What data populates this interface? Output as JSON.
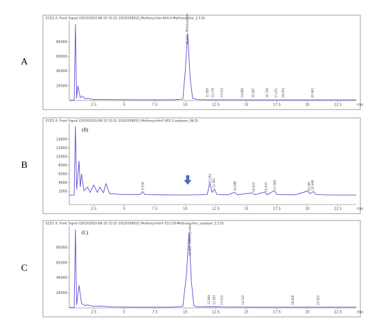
{
  "chart_data": [
    {
      "type": "line",
      "panel_label": "A",
      "title": "ECD1 A, Front Signal (2010\\2010-08-10 15-51-10\\20100810_Methoxychlor-004-4-Methoxychlor_2.5.D)",
      "x_unit": "min",
      "x": [
        0.5,
        0.9,
        1.0,
        1.1,
        1.2,
        1.4,
        1.6,
        1.8,
        2.0,
        2.5,
        3,
        4,
        5,
        6,
        7,
        8,
        9,
        9.8,
        10.0,
        10.2,
        10.4,
        10.6,
        11,
        12,
        14,
        16,
        18,
        20,
        22,
        24
      ],
      "series": [
        {
          "color": "#5a4fcf",
          "values": [
            500,
            500,
            104000,
            3000,
            20000,
            4000,
            6000,
            2000,
            3000,
            1500,
            1500,
            1200,
            1100,
            1000,
            1000,
            1000,
            1000,
            2000,
            40000,
            92000,
            30000,
            3000,
            1200,
            1000,
            1000,
            900,
            900,
            900,
            900,
            900
          ]
        }
      ],
      "xlim": [
        0.5,
        24
      ],
      "xticks": [
        2.5,
        5,
        7.5,
        10,
        12.5,
        15,
        17.5,
        20,
        22.5
      ],
      "ylim": [
        0,
        105000
      ],
      "yticks": [
        20000,
        40000,
        60000,
        80000
      ],
      "peak_labels": [
        {
          "value": 10.171,
          "label": "10.171 - Methoxychlor"
        },
        {
          "value": 11.826,
          "label": "11.826"
        },
        {
          "value": 12.275,
          "label": "12.275"
        },
        {
          "value": 13.023,
          "label": "13.023"
        },
        {
          "value": 14.686,
          "label": "14.686"
        },
        {
          "value": 15.587,
          "label": "15.587"
        },
        {
          "value": 16.726,
          "label": "16.726"
        },
        {
          "value": 17.471,
          "label": "17.471"
        },
        {
          "value": 18.054,
          "label": "18.054"
        },
        {
          "value": 20.463,
          "label": "20.463"
        }
      ]
    },
    {
      "type": "line",
      "panel_label": "B",
      "annotation": "(B)",
      "title": "ECD1 A, Front Signal (2010\\2010-08-10 15-51-10\\20100810_MethoxychlorF-002-2-soybean_06.D)",
      "x_unit": "min",
      "x": [
        0.5,
        0.9,
        1.0,
        1.1,
        1.3,
        1.4,
        1.5,
        1.7,
        2.0,
        2.2,
        2.5,
        2.8,
        3.0,
        3.3,
        3.5,
        3.8,
        5,
        6.3,
        6.5,
        6.7,
        8,
        10,
        11.8,
        12.0,
        12.2,
        12.4,
        12.6,
        13.5,
        14.0,
        14.3,
        15.5,
        15.7,
        16.5,
        16.7,
        17.3,
        17.5,
        19,
        20.0,
        20.2,
        20.5,
        20.7,
        22,
        24
      ],
      "series": [
        {
          "color": "#5a4fcf",
          "values": [
            1200,
            1200,
            17000,
            2500,
            9000,
            3000,
            6000,
            2200,
            3000,
            1800,
            3500,
            1800,
            3000,
            1700,
            3800,
            1500,
            1300,
            1300,
            2000,
            1300,
            1250,
            1200,
            1300,
            4000,
            1800,
            2500,
            1300,
            1250,
            1800,
            1250,
            1700,
            1250,
            1900,
            1250,
            2200,
            1300,
            1250,
            2100,
            1500,
            2000,
            1300,
            1200,
            1200
          ]
        }
      ],
      "xlim": [
        0.5,
        24
      ],
      "xticks": [
        2.5,
        5,
        7.5,
        10,
        12.5,
        15,
        17.5,
        20,
        22.5
      ],
      "ylim": [
        -1000,
        17000
      ],
      "yticks": [
        2000,
        4000,
        6000,
        8000,
        10000,
        12000,
        14000
      ],
      "peak_labels": [
        {
          "value": 6.536,
          "label": "6.536"
        },
        {
          "value": 12.051,
          "label": "12.051"
        },
        {
          "value": 12.362,
          "label": "12.362"
        },
        {
          "value": 14.088,
          "label": "14.088"
        },
        {
          "value": 15.625,
          "label": "15.625"
        },
        {
          "value": 16.637,
          "label": "16.637"
        },
        {
          "value": 17.369,
          "label": "17.369"
        },
        {
          "value": 20.18,
          "label": "20.180"
        },
        {
          "value": 20.448,
          "label": "20.448"
        }
      ]
    },
    {
      "type": "line",
      "panel_label": "C",
      "annotation": "(C)",
      "title": "ECD1 A, Front Signal (2010\\2010-08-10 15-51-10\\20100810_MethoxychlorF-011-29-Methoxychlor_soybean_2.5.D)",
      "x_unit": "min",
      "x": [
        0.5,
        0.9,
        1.0,
        1.1,
        1.3,
        1.5,
        1.8,
        2.0,
        2.5,
        3,
        4,
        5,
        6,
        7,
        8,
        9,
        9.8,
        10.1,
        10.3,
        10.5,
        10.7,
        11,
        12.0,
        12.4,
        13,
        14,
        16,
        18,
        20,
        22,
        24
      ],
      "series": [
        {
          "color": "#5a4fcf",
          "values": [
            500,
            500,
            104000,
            4000,
            30000,
            6000,
            3000,
            4000,
            2000,
            2500,
            1200,
            1100,
            1000,
            1000,
            1000,
            1000,
            2000,
            45000,
            100000,
            35000,
            3000,
            1200,
            1600,
            1500,
            1200,
            1100,
            1000,
            1000,
            1000,
            1000,
            1000
          ]
        }
      ],
      "xlim": [
        0.5,
        24
      ],
      "xticks": [
        2.5,
        5,
        7.5,
        10,
        12.5,
        15,
        17.5,
        20,
        22.5
      ],
      "ylim": [
        0,
        105000
      ],
      "yticks": [
        20000,
        40000,
        60000,
        80000
      ],
      "peak_labels": [
        {
          "value": 10.403,
          "label": "10.403 - Methoxychlor"
        },
        {
          "value": 11.964,
          "label": "11.964"
        },
        {
          "value": 12.387,
          "label": "12.387"
        },
        {
          "value": 13.012,
          "label": "13.012"
        },
        {
          "value": 14.742,
          "label": "14.742"
        },
        {
          "value": 18.838,
          "label": "18.838"
        },
        {
          "value": 20.92,
          "label": "20.920"
        }
      ]
    }
  ]
}
